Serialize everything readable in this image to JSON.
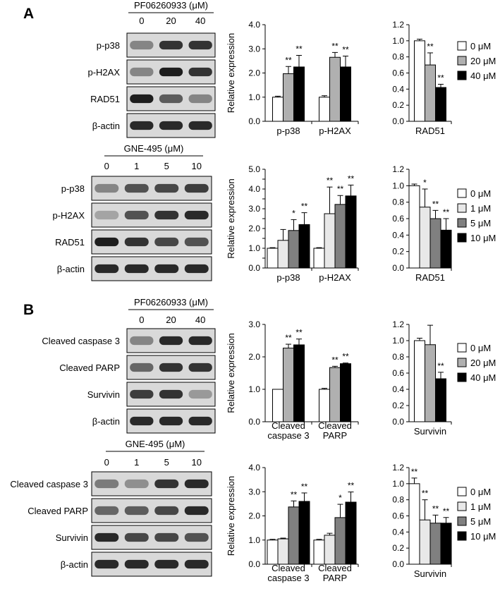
{
  "panel_labels": [
    "A",
    "B"
  ],
  "blots": [
    {
      "id": "A1",
      "treatment": "PF06260933 (μM)",
      "doses": [
        "0",
        "20",
        "40"
      ],
      "rows": [
        "p-p38",
        "p-H2AX",
        "RAD51",
        "β-actin"
      ],
      "band_intensity": [
        [
          0.45,
          0.85,
          0.85
        ],
        [
          0.45,
          0.95,
          0.85
        ],
        [
          0.95,
          0.65,
          0.45
        ],
        [
          0.9,
          0.9,
          0.9
        ]
      ]
    },
    {
      "id": "A2",
      "treatment": "GNE-495 (μM)",
      "doses": [
        "0",
        "1",
        "5",
        "10"
      ],
      "rows": [
        "p-p38",
        "p-H2AX",
        "RAD51",
        "β-actin"
      ],
      "band_intensity": [
        [
          0.45,
          0.7,
          0.75,
          0.8
        ],
        [
          0.3,
          0.7,
          0.85,
          0.9
        ],
        [
          0.95,
          0.85,
          0.75,
          0.7
        ],
        [
          0.9,
          0.9,
          0.9,
          0.9
        ]
      ]
    },
    {
      "id": "B1",
      "treatment": "PF06260933 (μM)",
      "doses": [
        "0",
        "20",
        "40"
      ],
      "rows": [
        "Cleaved caspase 3",
        "Cleaved PARP",
        "Survivin",
        "β-actin"
      ],
      "band_intensity": [
        [
          0.45,
          0.9,
          0.9
        ],
        [
          0.6,
          0.85,
          0.85
        ],
        [
          0.8,
          0.85,
          0.35
        ],
        [
          0.9,
          0.9,
          0.9
        ]
      ]
    },
    {
      "id": "B2",
      "treatment": "GNE-495 (μM)",
      "doses": [
        "0",
        "1",
        "5",
        "10"
      ],
      "rows": [
        "Cleaved caspase 3",
        "Cleaved PARP",
        "Survivin",
        "β-actin"
      ],
      "band_intensity": [
        [
          0.5,
          0.4,
          0.85,
          0.9
        ],
        [
          0.6,
          0.65,
          0.75,
          0.9
        ],
        [
          0.9,
          0.75,
          0.75,
          0.7
        ],
        [
          0.9,
          0.9,
          0.9,
          0.9
        ]
      ]
    }
  ],
  "legends": [
    {
      "id": "leg1",
      "colors": [
        "#ffffff",
        "#b0b0b0",
        "#000000"
      ],
      "labels": [
        "0 μM",
        "20 μM",
        "40 μM"
      ]
    },
    {
      "id": "leg2",
      "colors": [
        "#ffffff",
        "#e8e8e8",
        "#808080",
        "#000000"
      ],
      "labels": [
        "0 μM",
        "1 μM",
        "5 μM",
        "10 μM"
      ]
    },
    {
      "id": "leg3",
      "colors": [
        "#ffffff",
        "#b0b0b0",
        "#000000"
      ],
      "labels": [
        "0 μM",
        "20 μM",
        "40 μM"
      ]
    },
    {
      "id": "leg4",
      "colors": [
        "#ffffff",
        "#e8e8e8",
        "#808080",
        "#000000"
      ],
      "labels": [
        "0 μM",
        "1 μM",
        "5 μM",
        "10 μM"
      ]
    }
  ],
  "chart_data": [
    {
      "id": "c1",
      "type": "bar",
      "ylabel": "Relative expression",
      "ylim": [
        0,
        4
      ],
      "yticks": [
        "0.0",
        "1.0",
        "2.0",
        "3.0",
        "4.0"
      ],
      "categories": [
        "p-p38",
        "p-H2AX"
      ],
      "colors": [
        "#ffffff",
        "#b0b0b0",
        "#000000"
      ],
      "series": [
        {
          "values": [
            1.0,
            1.0
          ],
          "errors": [
            0.04,
            0.06
          ],
          "sig": [
            "",
            ""
          ]
        },
        {
          "values": [
            1.97,
            2.65
          ],
          "errors": [
            0.3,
            0.2
          ],
          "sig": [
            "**",
            "**"
          ]
        },
        {
          "values": [
            2.25,
            2.25
          ],
          "errors": [
            0.48,
            0.45
          ],
          "sig": [
            "**",
            "**"
          ]
        }
      ]
    },
    {
      "id": "c2",
      "type": "bar",
      "ylim": [
        0,
        1.2
      ],
      "yticks": [
        "0.0",
        "0.2",
        "0.4",
        "0.6",
        "0.8",
        "1.0",
        "1.2"
      ],
      "categories": [
        "RAD51"
      ],
      "colors": [
        "#ffffff",
        "#b0b0b0",
        "#000000"
      ],
      "series": [
        {
          "values": [
            1.0
          ],
          "errors": [
            0.02
          ],
          "sig": [
            ""
          ]
        },
        {
          "values": [
            0.7
          ],
          "errors": [
            0.15
          ],
          "sig": [
            "**"
          ]
        },
        {
          "values": [
            0.42
          ],
          "errors": [
            0.04
          ],
          "sig": [
            "**"
          ]
        }
      ]
    },
    {
      "id": "c3",
      "type": "bar",
      "ylabel": "Relative expression",
      "ylim": [
        0,
        5
      ],
      "yticks": [
        "0.0",
        "0.5",
        "1.0",
        "1.5",
        "2.0",
        "2.5",
        "3.0",
        "3.5",
        "4.0",
        "4.5",
        "5.0"
      ],
      "categories": [
        "p-p38",
        "p-H2AX"
      ],
      "colors": [
        "#ffffff",
        "#e8e8e8",
        "#808080",
        "#000000"
      ],
      "series": [
        {
          "values": [
            1.0,
            1.0
          ],
          "errors": [
            0.03,
            0.03
          ],
          "sig": [
            "",
            ""
          ]
        },
        {
          "values": [
            1.4,
            2.75
          ],
          "errors": [
            0.55,
            1.35
          ],
          "sig": [
            "",
            "**"
          ]
        },
        {
          "values": [
            1.9,
            3.22
          ],
          "errors": [
            0.55,
            0.45
          ],
          "sig": [
            "*",
            "**"
          ]
        },
        {
          "values": [
            2.2,
            3.65
          ],
          "errors": [
            0.6,
            0.55
          ],
          "sig": [
            "**",
            "**"
          ]
        }
      ]
    },
    {
      "id": "c4",
      "type": "bar",
      "ylim": [
        0,
        1.2
      ],
      "yticks": [
        "0.0",
        "0.2",
        "0.4",
        "0.6",
        "0.8",
        "1.0",
        "1.2"
      ],
      "categories": [
        "RAD51"
      ],
      "colors": [
        "#ffffff",
        "#e8e8e8",
        "#808080",
        "#000000"
      ],
      "series": [
        {
          "values": [
            1.0
          ],
          "errors": [
            0.02
          ],
          "sig": [
            ""
          ]
        },
        {
          "values": [
            0.74
          ],
          "errors": [
            0.22
          ],
          "sig": [
            "*"
          ]
        },
        {
          "values": [
            0.6
          ],
          "errors": [
            0.1
          ],
          "sig": [
            "**"
          ]
        },
        {
          "values": [
            0.46
          ],
          "errors": [
            0.14
          ],
          "sig": [
            "**"
          ]
        }
      ]
    },
    {
      "id": "c5",
      "type": "bar",
      "ylabel": "Relative expression",
      "ylim": [
        0,
        3
      ],
      "yticks": [
        "0.0",
        "1.0",
        "2.0",
        "3.0"
      ],
      "categories": [
        "Cleaved\ncaspase 3",
        "Cleaved\nPARP"
      ],
      "colors": [
        "#ffffff",
        "#b0b0b0",
        "#000000"
      ],
      "series": [
        {
          "values": [
            1.0,
            1.0
          ],
          "errors": [
            0.0,
            0.03
          ],
          "sig": [
            "",
            ""
          ]
        },
        {
          "values": [
            2.27,
            1.67
          ],
          "errors": [
            0.12,
            0.04
          ],
          "sig": [
            "**",
            "**"
          ]
        },
        {
          "values": [
            2.37,
            1.79
          ],
          "errors": [
            0.18,
            0.02
          ],
          "sig": [
            "**",
            "**"
          ]
        }
      ]
    },
    {
      "id": "c6",
      "type": "bar",
      "ylim": [
        0,
        1.2
      ],
      "yticks": [
        "0.0",
        "0.2",
        "0.4",
        "0.6",
        "0.8",
        "1.0",
        "1.2"
      ],
      "categories": [
        "Survivin"
      ],
      "colors": [
        "#ffffff",
        "#b0b0b0",
        "#000000"
      ],
      "series": [
        {
          "values": [
            1.0
          ],
          "errors": [
            0.03
          ],
          "sig": [
            ""
          ]
        },
        {
          "values": [
            0.95
          ],
          "errors": [
            0.24
          ],
          "sig": [
            ""
          ]
        },
        {
          "values": [
            0.53
          ],
          "errors": [
            0.08
          ],
          "sig": [
            "**"
          ]
        }
      ]
    },
    {
      "id": "c7",
      "type": "bar",
      "ylabel": "Relative expression",
      "ylim": [
        0,
        4
      ],
      "yticks": [
        "0.0",
        "1.0",
        "2.0",
        "3.0",
        "4.0"
      ],
      "categories": [
        "Cleaved\ncaspase 3",
        "Cleaved\nPARP"
      ],
      "colors": [
        "#ffffff",
        "#e8e8e8",
        "#808080",
        "#000000"
      ],
      "series": [
        {
          "values": [
            1.0,
            1.0
          ],
          "errors": [
            0.03,
            0.03
          ],
          "sig": [
            "",
            ""
          ]
        },
        {
          "values": [
            1.05,
            1.2
          ],
          "errors": [
            0.03,
            0.08
          ],
          "sig": [
            "",
            ""
          ]
        },
        {
          "values": [
            2.37,
            1.93
          ],
          "errors": [
            0.25,
            0.55
          ],
          "sig": [
            "**",
            "*"
          ]
        },
        {
          "values": [
            2.6,
            2.57
          ],
          "errors": [
            0.35,
            0.42
          ],
          "sig": [
            "**",
            "**"
          ]
        }
      ]
    },
    {
      "id": "c8",
      "type": "bar",
      "ylim": [
        0,
        1.2
      ],
      "yticks": [
        "0.0",
        "0.2",
        "0.4",
        "0.6",
        "0.8",
        "1.0",
        "1.2"
      ],
      "categories": [
        "Survivin"
      ],
      "colors": [
        "#ffffff",
        "#e8e8e8",
        "#808080",
        "#000000"
      ],
      "series": [
        {
          "values": [
            1.0
          ],
          "errors": [
            0.07
          ],
          "sig": [
            "**"
          ]
        },
        {
          "values": [
            0.55
          ],
          "errors": [
            0.25
          ],
          "sig": [
            "**"
          ]
        },
        {
          "values": [
            0.51
          ],
          "errors": [
            0.1
          ],
          "sig": [
            "**"
          ]
        },
        {
          "values": [
            0.51
          ],
          "errors": [
            0.07
          ],
          "sig": [
            "**"
          ]
        }
      ]
    }
  ]
}
